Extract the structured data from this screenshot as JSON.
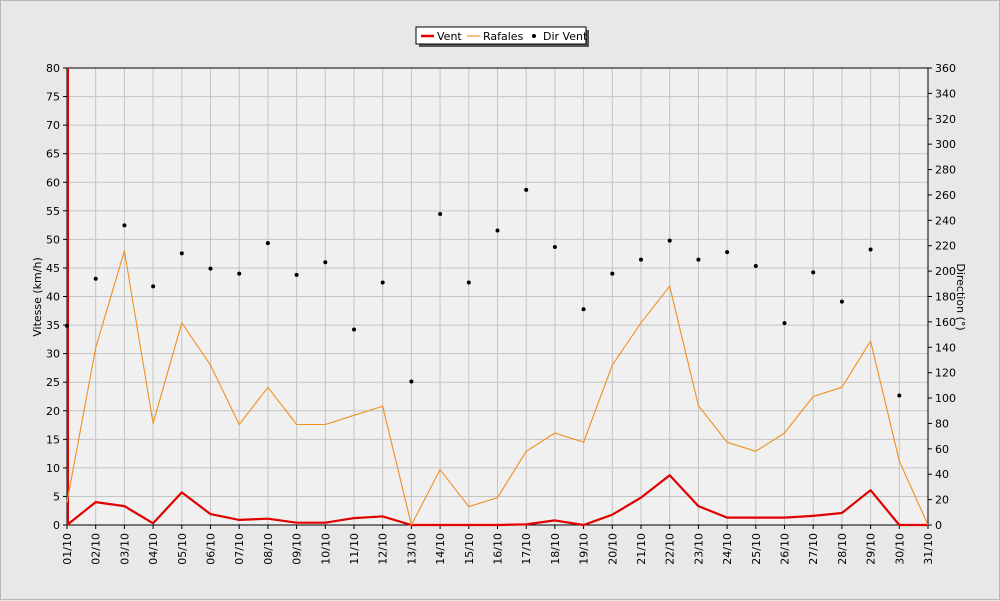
{
  "chart_data": {
    "type": "line",
    "categories": [
      "01/10",
      "02/10",
      "03/10",
      "04/10",
      "05/10",
      "06/10",
      "07/10",
      "08/10",
      "09/10",
      "10/10",
      "11/10",
      "12/10",
      "13/10",
      "14/10",
      "15/10",
      "16/10",
      "17/10",
      "18/10",
      "19/10",
      "20/10",
      "21/10",
      "22/10",
      "23/10",
      "24/10",
      "25/10",
      "26/10",
      "27/10",
      "28/10",
      "29/10",
      "30/10",
      "31/10"
    ],
    "y_left": {
      "label": "Vitesse (km/h)",
      "min": 0,
      "max": 80,
      "step": 5
    },
    "y_right": {
      "label": "Direction (°)",
      "min": 0,
      "max": 360,
      "step": 20
    },
    "grid": true,
    "legend_position": "top-center",
    "series": [
      {
        "name": "Vent",
        "axis": "left",
        "style": "line",
        "color": "#e00000",
        "values": [
          0,
          4,
          3.3,
          0.3,
          5.7,
          1.9,
          0.9,
          1.1,
          0.4,
          0.4,
          1.2,
          1.5,
          0,
          0,
          0,
          0,
          0.1,
          0.8,
          0,
          1.8,
          4.8,
          8.7,
          3.3,
          1.3,
          1.3,
          1.3,
          1.6,
          2.1,
          6.1,
          0,
          0
        ]
      },
      {
        "name": "Rafales",
        "axis": "left",
        "style": "line",
        "color": "#f09020",
        "values": [
          4,
          31,
          48,
          17.8,
          35.4,
          28,
          17.6,
          24.1,
          17.6,
          17.6,
          19.2,
          20.8,
          0,
          9.7,
          3.2,
          4.8,
          12.9,
          16.1,
          14.5,
          28,
          35.4,
          41.8,
          20.9,
          14.5,
          12.9,
          16.1,
          22.5,
          24.1,
          32.2,
          11.2,
          0
        ]
      },
      {
        "name": "Dir Vent",
        "axis": "right",
        "style": "points",
        "color": "#000000",
        "values": [
          157,
          194,
          236,
          188,
          214,
          202,
          198,
          222,
          197,
          207,
          154,
          191,
          113,
          245,
          191,
          232,
          264,
          219,
          170,
          198,
          209,
          224,
          209,
          215,
          204,
          159,
          199,
          176,
          217,
          102,
          null
        ]
      }
    ]
  }
}
